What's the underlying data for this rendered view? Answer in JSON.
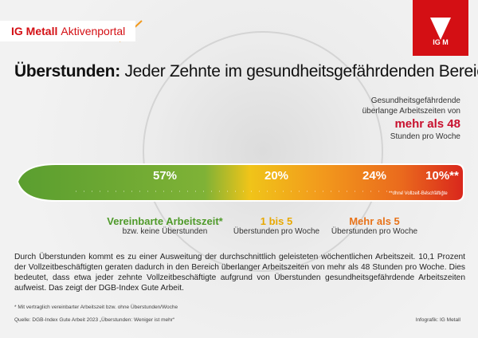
{
  "header": {
    "brand_bold": "IG Metall",
    "brand": "Aktivenportal",
    "logo": "IG M"
  },
  "title": {
    "bold": "Überstunden:",
    "rest": "Jeder Zehnte im gesundheitsgefährdenden Bereich"
  },
  "annotation": {
    "line1": "Gesundheitsgefährdende",
    "line2": "überlange Arbeitszeiten von",
    "highlight": "mehr als 48",
    "line3": "Stunden pro Woche"
  },
  "bar": {
    "segments": [
      "57%",
      "20%",
      "24%",
      "10%**"
    ],
    "segment_note": "**ohne Vollzeit-Beschäftigte"
  },
  "labels": [
    {
      "heading": "Vereinbarte Arbeitszeit*",
      "sub": "bzw. keine Überstunden"
    },
    {
      "heading": "1 bis 5",
      "sub": "Überstunden pro Woche"
    },
    {
      "heading": "Mehr als 5",
      "sub": "Überstunden pro Woche"
    }
  ],
  "body": "Durch Überstunden kommt es zu einer Ausweitung der durchschnittlich geleisteten wöchentlichen Arbeitszeit. 10,1 Prozent der Vollzeitbeschäftigten geraten dadurch in den Bereich überlanger Arbeitszeiten von mehr als 48 Stunden pro Woche. Dies bedeutet, dass etwa jeder zehnte Vollzeitbeschäftigte aufgrund von Überstunden gesundheitsgefährdende Arbeitszeiten aufweist. Das zeigt der DGB-Index Gute Arbeit.",
  "footnote": "* Mit vertraglich vereinbarter Arbeitszeit bzw. ohne Überstunden/Woche",
  "source": "Quelle: DGB-Index Gute Arbeit 2023 „Überstunden: Weniger ist mehr“",
  "credit": "Infografik: IG Metall"
}
